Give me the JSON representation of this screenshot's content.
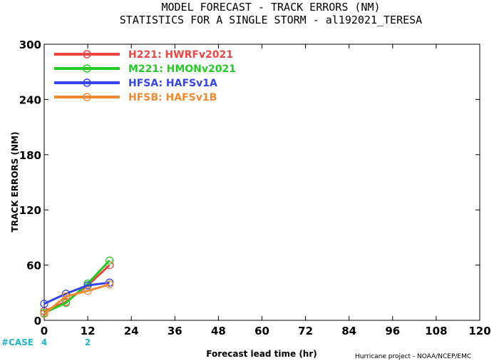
{
  "title_line1": "MODEL FORECAST - TRACK ERRORS (NM)",
  "title_line2": "STATISTICS FOR A SINGLE STORM - al192021_TERESA",
  "credit": "Hurricane project - NOAA/NCEP/EMC",
  "case_label": "#CASE",
  "case_counts": [
    {
      "x": 0,
      "count": "4"
    },
    {
      "x": 12,
      "count": "2"
    }
  ],
  "chart_data": {
    "type": "line",
    "xlabel": "Forecast lead time (hr)",
    "ylabel": "TRACK ERRORS (NM)",
    "xlim": [
      0,
      120
    ],
    "ylim": [
      0,
      300
    ],
    "xticks": [
      0,
      12,
      24,
      36,
      48,
      60,
      72,
      84,
      96,
      108,
      120
    ],
    "yticks": [
      0,
      60,
      120,
      180,
      240,
      300
    ],
    "ytick_labels": [
      "0",
      "60",
      "120",
      "180",
      "240",
      "300"
    ],
    "legend_position": "top-left",
    "grid": false,
    "series": [
      {
        "name": "H221: HWRFv2021",
        "color": "#ee4444",
        "x": [
          0,
          6,
          12,
          18
        ],
        "values": [
          10,
          20,
          38,
          60
        ]
      },
      {
        "name": "M221: HMONv2021",
        "color": "#22cc22",
        "x": [
          0,
          6,
          12,
          18
        ],
        "values": [
          8,
          19,
          40,
          65
        ]
      },
      {
        "name": "HFSA: HAFSv1A",
        "color": "#3344ee",
        "x": [
          0,
          6,
          12,
          18
        ],
        "values": [
          18,
          29,
          38,
          41
        ]
      },
      {
        "name": "HFSB: HAFSv1B",
        "color": "#f08a30",
        "x": [
          0,
          6,
          12,
          18
        ],
        "values": [
          7,
          26,
          32,
          39
        ]
      }
    ]
  }
}
